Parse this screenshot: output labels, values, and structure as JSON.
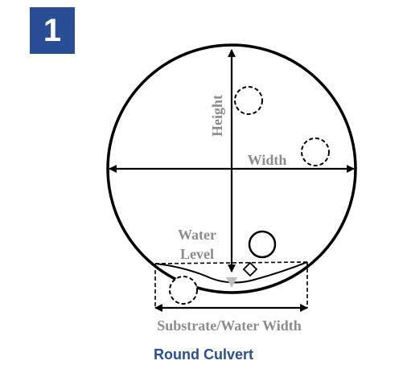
{
  "badge": {
    "label": "1",
    "color": "#2a4e96"
  },
  "labels": {
    "height": "Height",
    "width": "Width",
    "water_level_line1": "Water",
    "water_level_line2": "Level",
    "substrate_water_width": "Substrate/Water Width"
  },
  "caption": {
    "text": "Round Culvert",
    "color": "#2a4e96"
  },
  "colors": {
    "outline": "#000000",
    "label_gray": "#8c8c8c",
    "water_arrow": "#bfbfbf"
  }
}
